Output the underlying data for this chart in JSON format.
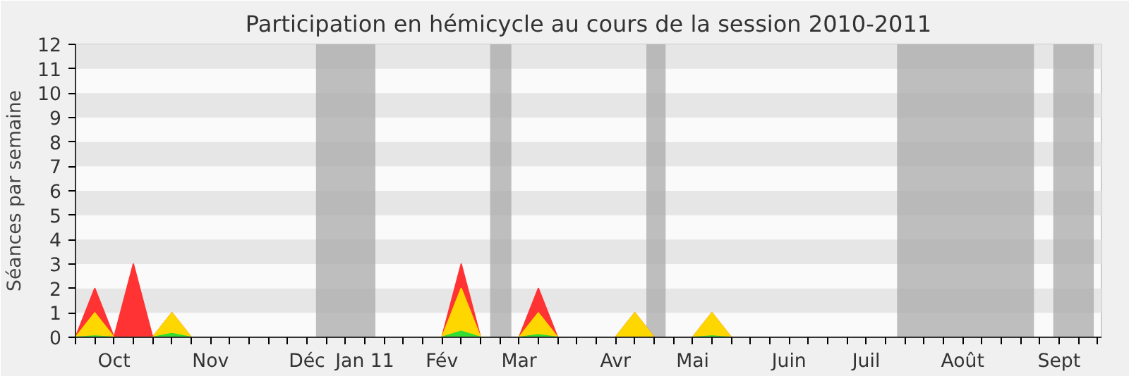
{
  "chart_data": {
    "type": "area",
    "title": "Participation en hémicycle au cours de la session 2010-2011",
    "ylabel": "Séances par semaine",
    "categories": [
      null,
      null,
      "Oct",
      null,
      null,
      null,
      null,
      "Nov",
      null,
      null,
      null,
      null,
      "Déc",
      null,
      null,
      "Jan 11",
      null,
      null,
      null,
      "Fév",
      null,
      null,
      null,
      "Mar",
      null,
      null,
      null,
      null,
      "Avr",
      null,
      null,
      null,
      "Mai",
      null,
      null,
      null,
      null,
      "Juin",
      null,
      null,
      null,
      "Juil",
      null,
      null,
      null,
      null,
      "Août",
      null,
      null,
      null,
      null,
      "Sept",
      null,
      null
    ],
    "series": [
      {
        "color": "#ff3333",
        "values": [
          0,
          2,
          0,
          3,
          0,
          1,
          0,
          0,
          0,
          0,
          0,
          0,
          0,
          0,
          0,
          0,
          0,
          0,
          0,
          0,
          3,
          0,
          0,
          0,
          2,
          0,
          0,
          0,
          0,
          1,
          0,
          0,
          0,
          1,
          0,
          0,
          0,
          0,
          0,
          0,
          0,
          0,
          0,
          0,
          0,
          0,
          0,
          0,
          0,
          0,
          0,
          0,
          0,
          0
        ]
      },
      {
        "color": "#ffd700",
        "values": [
          0,
          1,
          0,
          0,
          0,
          1,
          0,
          0,
          0,
          0,
          0,
          0,
          0,
          0,
          0,
          0,
          0,
          0,
          0,
          0,
          2,
          0,
          0,
          0,
          1,
          0,
          0,
          0,
          0,
          1,
          0,
          0,
          0,
          1,
          0,
          0,
          0,
          0,
          0,
          0,
          0,
          0,
          0,
          0,
          0,
          0,
          0,
          0,
          0,
          0,
          0,
          0,
          0,
          0
        ]
      },
      {
        "color": "#33dd33",
        "values": [
          0,
          0.05,
          0,
          0,
          0,
          0.15,
          0,
          0,
          0,
          0,
          0,
          0,
          0,
          0,
          0,
          0,
          0,
          0,
          0,
          0,
          0.25,
          0,
          0,
          0,
          0.1,
          0,
          0,
          0,
          0,
          0,
          0,
          0,
          0,
          0.05,
          0,
          0,
          0,
          0,
          0,
          0,
          0,
          0,
          0,
          0,
          0,
          0,
          0,
          0,
          0,
          0,
          0,
          0,
          0,
          0
        ]
      }
    ],
    "ylim": [
      0,
      12
    ],
    "yticks": [
      0,
      1,
      2,
      3,
      4,
      5,
      6,
      7,
      8,
      9,
      10,
      11,
      12
    ]
  }
}
